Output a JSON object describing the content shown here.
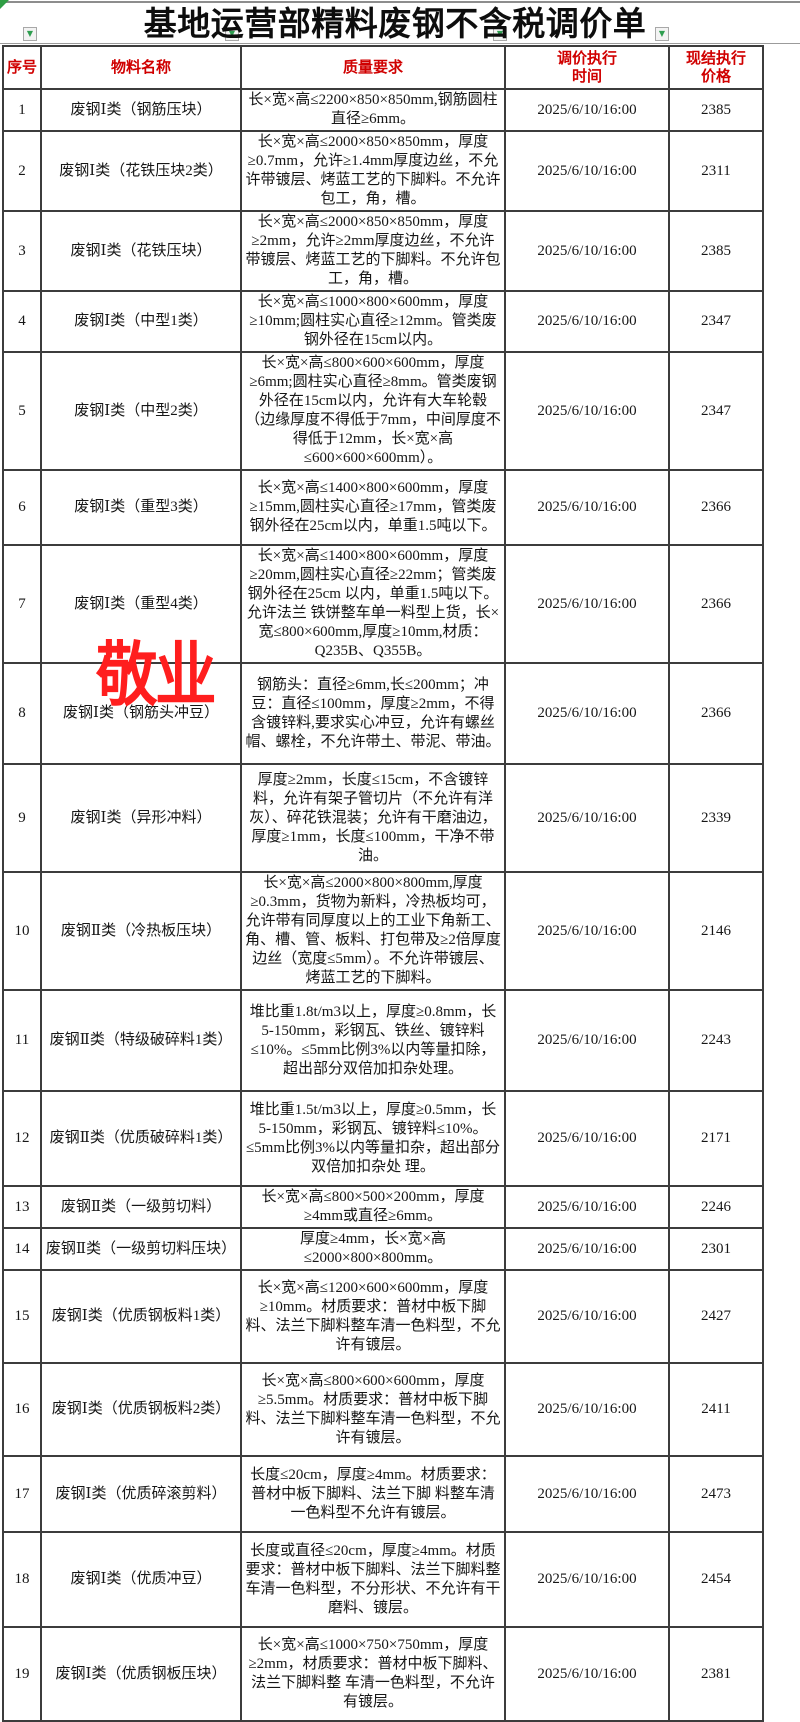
{
  "title": "基地运营部精料废钢不含税调价单",
  "watermark": "敬业",
  "icons": {
    "filter_glyph": "▼"
  },
  "colors": {
    "header_text": "#d00000",
    "watermark": "#ff1e1e",
    "filter_arrow": "#2e9e50",
    "corner_indicator": "#2f9e44",
    "border": "#3c3c3c"
  },
  "table": {
    "headers": {
      "no": "序号",
      "material": "物料名称",
      "quality": "质量要求",
      "time": "调价执行时间",
      "price": "现结执行价格"
    },
    "rows": [
      {
        "no": "1",
        "material": "废钢Ⅰ类（钢筋压块）",
        "quality": "长×宽×高≤2200×850×850mm,钢筋圆柱直径≥6mm。",
        "time": "2025/6/10/16:00",
        "price": "2385"
      },
      {
        "no": "2",
        "material": "废钢Ⅰ类（花铁压块2类）",
        "quality": "长×宽×高≤2000×850×850mm，厚度≥0.7mm，允许≥1.4mm厚度边丝，不允许带镀层、烤蓝工艺的下脚料。不允许包工，角，槽。",
        "time": "2025/6/10/16:00",
        "price": "2311"
      },
      {
        "no": "3",
        "material": "废钢Ⅰ类（花铁压块）",
        "quality": "长×宽×高≤2000×850×850mm，厚度≥2mm，允许≥2mm厚度边丝，不允许带镀层、烤蓝工艺的下脚料。不允许包工，角，槽。",
        "time": "2025/6/10/16:00",
        "price": "2385"
      },
      {
        "no": "4",
        "material": "废钢Ⅰ类（中型1类）",
        "quality": "长×宽×高≤1000×800×600mm，厚度≥10mm;圆柱实心直径≥12mm。管类废钢外径在15cm以内。",
        "time": "2025/6/10/16:00",
        "price": "2347"
      },
      {
        "no": "5",
        "material": "废钢Ⅰ类（中型2类）",
        "quality": "长×宽×高≤800×600×600mm，厚度≥6mm;圆柱实心直径≥8mm。管类废钢外径在15cm以内，允许有大车轮毂（边缘厚度不得低于7mm，中间厚度不得低于12mm，长×宽×高≤600×600×600mm）。",
        "time": "2025/6/10/16:00",
        "price": "2347"
      },
      {
        "no": "6",
        "material": "废钢Ⅰ类（重型3类）",
        "quality": "长×宽×高≤1400×800×600mm，厚度≥15mm,圆柱实心直径≥17mm，管类废钢外径在25cm以内，单重1.5吨以下。",
        "time": "2025/6/10/16:00",
        "price": "2366"
      },
      {
        "no": "7",
        "material": "废钢Ⅰ类（重型4类）",
        "quality": "长×宽×高≤1400×800×600mm，厚度≥20mm,圆柱实心直径≥22mm；管类废钢外径在25cm 以内，单重1.5吨以下。允许法兰 铁饼整车单一料型上货，长×宽≤800×600mm,厚度≥10mm,材质：Q235B、Q355B。",
        "time": "2025/6/10/16:00",
        "price": "2366"
      },
      {
        "no": "8",
        "material": "废钢Ⅰ类（钢筋头冲豆）",
        "quality": "钢筋头：直径≥6mm,长≤200mm；冲豆：直径≤100mm，厚度≥2mm，不得含镀锌料,要求实心冲豆，允许有螺丝帽、螺栓，不允许带土、带泥、带油。",
        "time": "2025/6/10/16:00",
        "price": "2366"
      },
      {
        "no": "9",
        "material": "废钢Ⅰ类（异形冲料）",
        "quality": "厚度≥2mm，长度≤15cm，不含镀锌料，允许有架子管切片（不允许有洋灰）、碎花铁混装；允许有干磨油边，厚度≥1mm，长度≤100mm，干净不带油。",
        "time": "2025/6/10/16:00",
        "price": "2339"
      },
      {
        "no": "10",
        "material": "废钢Ⅱ类（冷热板压块）",
        "quality": "长×宽×高≤2000×800×800mm,厚度≥0.3mm，货物为新料，冷热板均可，允许带有同厚度以上的工业下角新工、角、槽、管、板料、打包带及≥2倍厚度边丝（宽度≤5mm）。不允许带镀层、烤蓝工艺的下脚料。",
        "time": "2025/6/10/16:00",
        "price": "2146"
      },
      {
        "no": "11",
        "material": "废钢Ⅱ类（特级破碎料1类）",
        "quality": "堆比重1.8t/m3以上，厚度≥0.8mm，长5-150mm，彩钢瓦、铁丝、镀锌料≤10%。≤5mm比例3%以内等量扣除，超出部分双倍加扣杂处理。",
        "time": "2025/6/10/16:00",
        "price": "2243"
      },
      {
        "no": "12",
        "material": "废钢Ⅱ类（优质破碎料1类）",
        "quality": "堆比重1.5t/m3以上，厚度≥0.5mm，长5-150mm，彩钢瓦、镀锌料≤10%。≤5mm比例3%以内等量扣杂，超出部分双倍加扣杂处 理。",
        "time": "2025/6/10/16:00",
        "price": "2171"
      },
      {
        "no": "13",
        "material": "废钢Ⅱ类（一级剪切料）",
        "quality": "长×宽×高≤800×500×200mm，厚度≥4mm或直径≥6mm。",
        "time": "2025/6/10/16:00",
        "price": "2246"
      },
      {
        "no": "14",
        "material": "废钢Ⅱ类（一级剪切料压块）",
        "quality": "厚度≥4mm，长×宽×高≤2000×800×800mm。",
        "time": "2025/6/10/16:00",
        "price": "2301"
      },
      {
        "no": "15",
        "material": "废钢Ⅰ类（优质钢板料1类）",
        "quality": "长×宽×高≤1200×600×600mm，厚度≥10mm。材质要求：普材中板下脚料、法兰下脚料整车清一色料型，不允许有镀层。",
        "time": "2025/6/10/16:00",
        "price": "2427"
      },
      {
        "no": "16",
        "material": "废钢Ⅰ类（优质钢板料2类）",
        "quality": "长×宽×高≤800×600×600mm，厚度≥5.5mm。材质要求：普材中板下脚料、法兰下脚料整车清一色料型，不允许有镀层。",
        "time": "2025/6/10/16:00",
        "price": "2411"
      },
      {
        "no": "17",
        "material": "废钢Ⅰ类（优质碎滚剪料）",
        "quality": "长度≤20cm，厚度≥4mm。材质要求：普材中板下脚料、法兰下脚 料整车清一色料型不允许有镀层。",
        "time": "2025/6/10/16:00",
        "price": "2473"
      },
      {
        "no": "18",
        "material": "废钢Ⅰ类（优质冲豆）",
        "quality": "长度或直径≤20cm，厚度≥4mm。材质要求：普材中板下脚料、法兰下脚料整车清一色料型，不分形状、不允许有干磨料、镀层。",
        "time": "2025/6/10/16:00",
        "price": "2454"
      },
      {
        "no": "19",
        "material": "废钢Ⅰ类（优质钢板压块）",
        "quality": "长×宽×高≤1000×750×750mm，厚度≥2mm，材质要求：普材中板下脚料、法兰下脚料整 车清一色料型，不允许有镀层。",
        "time": "2025/6/10/16:00",
        "price": "2381"
      }
    ]
  }
}
